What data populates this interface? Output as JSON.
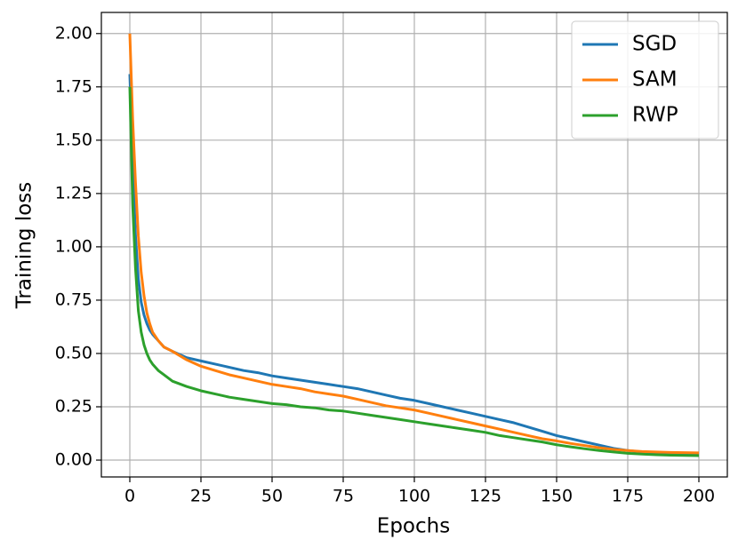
{
  "chart_data": {
    "type": "line",
    "xlabel": "Epochs",
    "ylabel": "Training loss",
    "x": [
      0,
      1,
      2,
      3,
      4,
      5,
      6,
      7,
      8,
      10,
      12,
      15,
      20,
      25,
      30,
      35,
      40,
      45,
      50,
      55,
      60,
      65,
      70,
      75,
      80,
      85,
      90,
      95,
      100,
      105,
      110,
      115,
      120,
      125,
      130,
      135,
      140,
      145,
      150,
      155,
      160,
      165,
      170,
      175,
      180,
      185,
      190,
      195,
      200
    ],
    "series": [
      {
        "name": "SGD",
        "color": "#1f77b4",
        "values": [
          1.81,
          1.4,
          1.05,
          0.85,
          0.74,
          0.68,
          0.64,
          0.61,
          0.59,
          0.56,
          0.53,
          0.51,
          0.48,
          0.465,
          0.45,
          0.435,
          0.42,
          0.41,
          0.395,
          0.385,
          0.375,
          0.365,
          0.355,
          0.345,
          0.335,
          0.32,
          0.305,
          0.29,
          0.28,
          0.265,
          0.25,
          0.235,
          0.22,
          0.205,
          0.19,
          0.175,
          0.155,
          0.135,
          0.115,
          0.1,
          0.085,
          0.07,
          0.055,
          0.045,
          0.038,
          0.033,
          0.03,
          0.028,
          0.027
        ]
      },
      {
        "name": "SAM",
        "color": "#ff7f0e",
        "values": [
          2.0,
          1.6,
          1.3,
          1.05,
          0.88,
          0.77,
          0.69,
          0.64,
          0.6,
          0.56,
          0.53,
          0.51,
          0.47,
          0.44,
          0.42,
          0.4,
          0.385,
          0.37,
          0.355,
          0.345,
          0.335,
          0.32,
          0.31,
          0.3,
          0.285,
          0.27,
          0.255,
          0.245,
          0.235,
          0.22,
          0.205,
          0.19,
          0.175,
          0.16,
          0.145,
          0.13,
          0.115,
          0.1,
          0.09,
          0.078,
          0.068,
          0.058,
          0.05,
          0.045,
          0.04,
          0.038,
          0.036,
          0.035,
          0.034
        ]
      },
      {
        "name": "RWP",
        "color": "#2ca02c",
        "values": [
          1.75,
          1.2,
          0.9,
          0.7,
          0.6,
          0.54,
          0.5,
          0.47,
          0.45,
          0.42,
          0.4,
          0.37,
          0.345,
          0.325,
          0.31,
          0.295,
          0.285,
          0.275,
          0.265,
          0.26,
          0.25,
          0.245,
          0.235,
          0.23,
          0.22,
          0.21,
          0.2,
          0.19,
          0.18,
          0.17,
          0.16,
          0.15,
          0.14,
          0.13,
          0.115,
          0.105,
          0.095,
          0.085,
          0.072,
          0.062,
          0.053,
          0.045,
          0.038,
          0.032,
          0.028,
          0.025,
          0.023,
          0.022,
          0.021
        ]
      }
    ],
    "xlim": [
      -10,
      210
    ],
    "xticks": [
      0,
      25,
      50,
      75,
      100,
      125,
      150,
      175,
      200
    ],
    "ylim": [
      -0.079,
      2.099
    ],
    "yticks": [
      {
        "value": 0,
        "label": "0.00"
      },
      {
        "value": 0.25,
        "label": "0.25"
      },
      {
        "value": 0.5,
        "label": "0.50"
      },
      {
        "value": 0.75,
        "label": "0.75"
      },
      {
        "value": 1,
        "label": "1.00"
      },
      {
        "value": 1.25,
        "label": "1.25"
      },
      {
        "value": 1.5,
        "label": "1.50"
      },
      {
        "value": 1.75,
        "label": "1.75"
      },
      {
        "value": 2,
        "label": "2.00"
      }
    ],
    "grid": true,
    "legend": "upper right"
  }
}
